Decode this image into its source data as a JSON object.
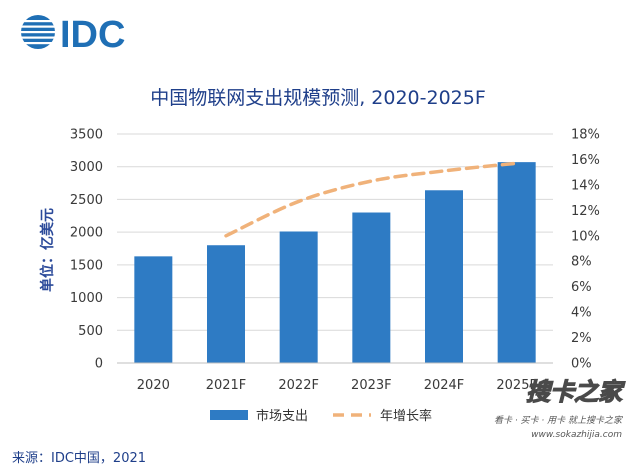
{
  "logo": {
    "text": "IDC"
  },
  "chart_data": {
    "type": "bar",
    "title": "中国物联网支出规模预测, 2020-2025F",
    "ylabel": "单位：亿美元",
    "categories": [
      "2020",
      "2021F",
      "2022F",
      "2023F",
      "2024F",
      "2025F"
    ],
    "series": [
      {
        "name": "市场支出",
        "type": "bar",
        "axis": "left",
        "color": "#2e7bc4",
        "values": [
          1630,
          1800,
          2010,
          2300,
          2640,
          3070
        ]
      },
      {
        "name": "年增长率",
        "type": "line",
        "axis": "right",
        "color": "#f0b27a",
        "dashed": true,
        "values": [
          null,
          10.0,
          12.7,
          14.3,
          15.1,
          15.7
        ]
      }
    ],
    "ylim": [
      0,
      3500
    ],
    "yticks": [
      "0",
      "500",
      "1000",
      "1500",
      "2000",
      "2500",
      "3000",
      "3500"
    ],
    "y2lim": [
      0,
      18
    ],
    "y2ticks": [
      "0%",
      "2%",
      "4%",
      "6%",
      "8%",
      "10%",
      "12%",
      "14%",
      "16%",
      "18%"
    ],
    "grid": true,
    "legend_position": "bottom"
  },
  "source": "来源：IDC中国，2021",
  "watermark": {
    "main": "搜卡之家",
    "sub": "看卡 · 买卡 · 用卡 就上搜卡之家",
    "url": "www.sokazhijia.com"
  }
}
